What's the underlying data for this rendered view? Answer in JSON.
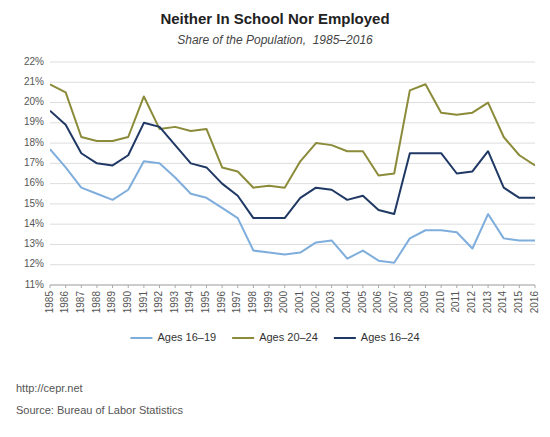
{
  "chart_data": {
    "type": "line",
    "title": "Neither In School Nor Employed",
    "subtitle": "Share of the Population,  1985–2016",
    "annotations": [
      "http://cepr.net",
      "Source: Bureau of Labor Statistics"
    ],
    "x": [
      1985,
      1986,
      1987,
      1988,
      1989,
      1990,
      1991,
      1992,
      1993,
      1994,
      1995,
      1996,
      1997,
      1998,
      1999,
      2000,
      2001,
      2002,
      2003,
      2004,
      2005,
      2006,
      2007,
      2008,
      2009,
      2010,
      2011,
      2012,
      2013,
      2014,
      2015,
      2016
    ],
    "xlim": [
      1985,
      2016
    ],
    "xticks": [
      1985,
      1986,
      1987,
      1988,
      1989,
      1990,
      1991,
      1992,
      1993,
      1994,
      1995,
      1996,
      1997,
      1998,
      1999,
      2000,
      2001,
      2002,
      2003,
      2004,
      2005,
      2006,
      2007,
      2008,
      2009,
      2010,
      2011,
      2012,
      2013,
      2014,
      2015,
      2016
    ],
    "ylim": [
      0.11,
      0.22
    ],
    "yticks": [
      {
        "value": 0.11,
        "label": "11%"
      },
      {
        "value": 0.12,
        "label": "12%"
      },
      {
        "value": 0.13,
        "label": "13%"
      },
      {
        "value": 0.14,
        "label": "14%"
      },
      {
        "value": 0.15,
        "label": "15%"
      },
      {
        "value": 0.16,
        "label": "16%"
      },
      {
        "value": 0.17,
        "label": "17%"
      },
      {
        "value": 0.18,
        "label": "18%"
      },
      {
        "value": 0.19,
        "label": "19%"
      },
      {
        "value": 0.2,
        "label": "20%"
      },
      {
        "value": 0.21,
        "label": "21%"
      },
      {
        "value": 0.22,
        "label": "22%"
      }
    ],
    "grid": true,
    "legend": "bottom",
    "series": [
      {
        "name": "Ages 16–19",
        "color": "#7faedc",
        "values": [
          0.177,
          0.168,
          0.158,
          0.155,
          0.152,
          0.157,
          0.171,
          0.17,
          0.163,
          0.155,
          0.153,
          0.148,
          0.143,
          0.127,
          0.126,
          0.125,
          0.126,
          0.131,
          0.132,
          0.123,
          0.127,
          0.122,
          0.121,
          0.133,
          0.137,
          0.137,
          0.136,
          0.128,
          0.145,
          0.133,
          0.132,
          0.132
        ]
      },
      {
        "name": "Ages 20–24",
        "color": "#8b8b3a",
        "values": [
          0.209,
          0.205,
          0.183,
          0.181,
          0.181,
          0.183,
          0.203,
          0.187,
          0.188,
          0.186,
          0.187,
          0.168,
          0.166,
          0.158,
          0.159,
          0.158,
          0.171,
          0.18,
          0.179,
          0.176,
          0.176,
          0.164,
          0.165,
          0.206,
          0.209,
          0.195,
          0.194,
          0.195,
          0.2,
          0.183,
          0.174,
          0.169
        ]
      },
      {
        "name": "Ages 16–24",
        "color": "#1f3864",
        "values": [
          0.196,
          0.189,
          0.175,
          0.17,
          0.169,
          0.174,
          0.19,
          0.188,
          0.179,
          0.17,
          0.168,
          0.16,
          0.154,
          0.143,
          0.143,
          0.143,
          0.153,
          0.158,
          0.157,
          0.152,
          0.154,
          0.147,
          0.145,
          0.175,
          0.175,
          0.175,
          0.165,
          0.166,
          0.176,
          0.158,
          0.153,
          0.153
        ]
      }
    ]
  }
}
